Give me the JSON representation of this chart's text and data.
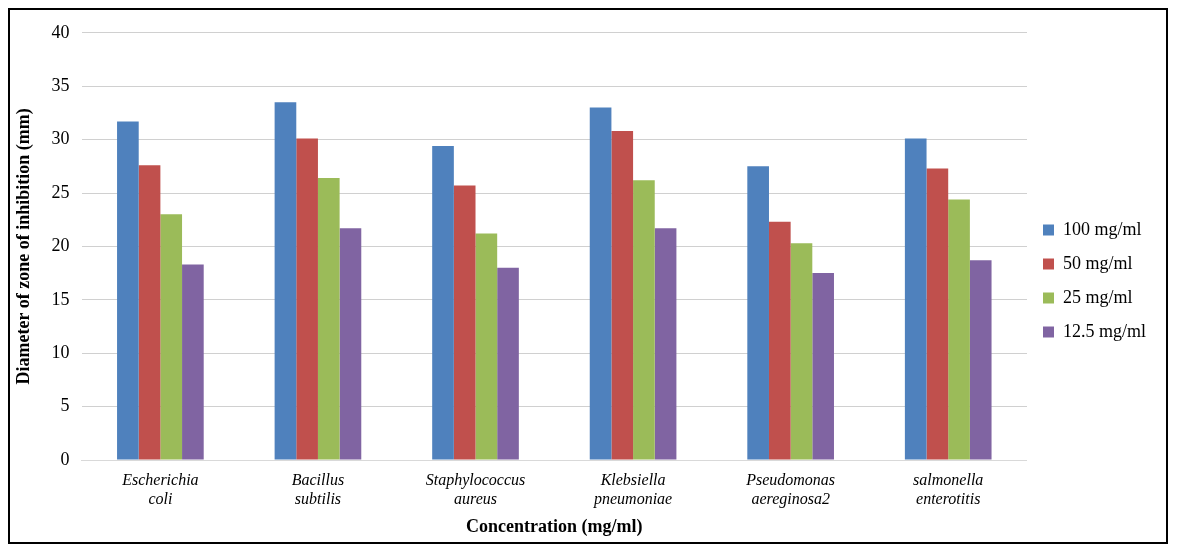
{
  "chart_data": {
    "type": "bar",
    "xlabel": "Concentration (mg/ml)",
    "ylabel": "Diameter of zone of inhibition (mm)",
    "categories": [
      "Escherichia coli",
      "Bacillus subtilis",
      "Staphylococcus aureus",
      "Klebsiella pneumoniae",
      "Pseudomonas aereginosa2",
      "salmonella enterotitis"
    ],
    "series": [
      {
        "name": "100 mg/ml",
        "color": "#4f81bd",
        "values": [
          31.7,
          33.5,
          29.4,
          33.0,
          27.5,
          30.1
        ]
      },
      {
        "name": "50 mg/ml",
        "color": "#c0504d",
        "values": [
          27.6,
          30.1,
          25.7,
          30.8,
          22.3,
          27.3
        ]
      },
      {
        "name": "25 mg/ml",
        "color": "#9bbb59",
        "values": [
          23.0,
          26.4,
          21.2,
          26.2,
          20.3,
          24.4
        ]
      },
      {
        "name": "12.5 mg/ml",
        "color": "#8064a2",
        "values": [
          18.3,
          21.7,
          18.0,
          21.7,
          17.5,
          18.7
        ]
      }
    ],
    "ylim": [
      0,
      40
    ],
    "yticks": [
      0,
      5,
      10,
      15,
      20,
      25,
      30,
      35,
      40
    ],
    "grid": "y",
    "legend": "right"
  }
}
